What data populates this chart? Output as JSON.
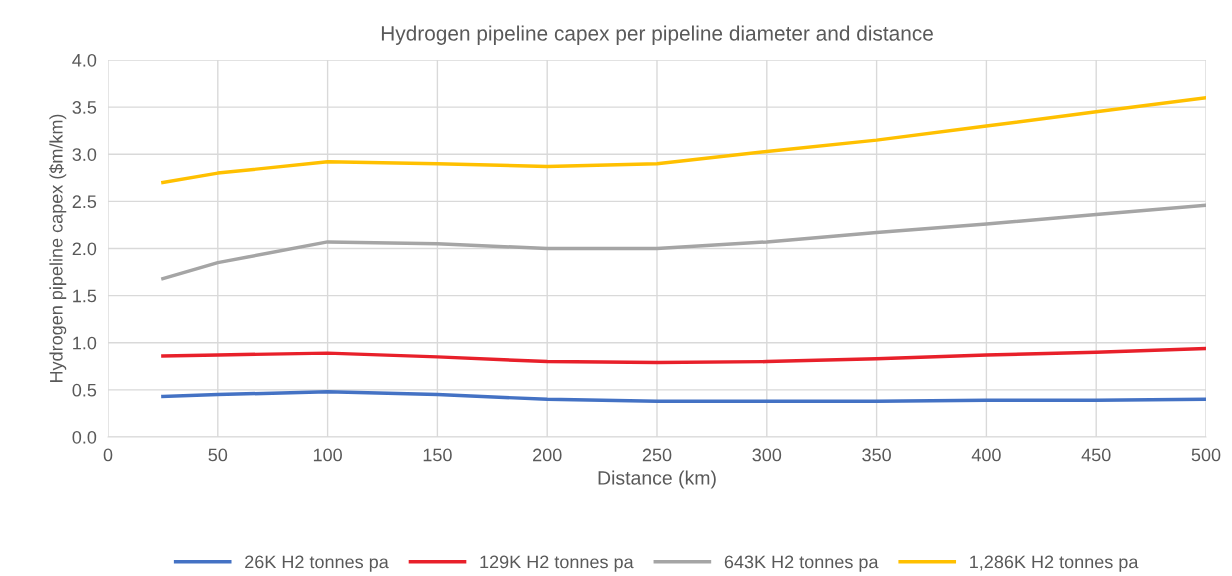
{
  "chart_data": {
    "type": "line",
    "title": "Hydrogen pipeline capex per pipeline diameter and distance",
    "xlabel": "Distance (km)",
    "ylabel": "Hydrogen pipeline capex ($m/km)",
    "x": [
      25,
      50,
      100,
      150,
      200,
      250,
      300,
      350,
      400,
      450,
      500
    ],
    "series": [
      {
        "name": "26K H2 tonnes pa",
        "color": "#4472c4",
        "values": [
          0.43,
          0.45,
          0.48,
          0.45,
          0.4,
          0.38,
          0.38,
          0.38,
          0.39,
          0.39,
          0.4
        ]
      },
      {
        "name": "129K H2 tonnes pa",
        "color": "#e8202a",
        "values": [
          0.86,
          0.87,
          0.89,
          0.85,
          0.8,
          0.79,
          0.8,
          0.83,
          0.87,
          0.9,
          0.94
        ]
      },
      {
        "name": "643K H2 tonnes pa",
        "color": "#a5a5a5",
        "values": [
          1.68,
          1.85,
          2.07,
          2.05,
          2.0,
          2.0,
          2.07,
          2.17,
          2.26,
          2.36,
          2.46
        ]
      },
      {
        "name": "1,286K H2 tonnes pa",
        "color": "#ffc000",
        "values": [
          2.7,
          2.8,
          2.92,
          2.9,
          2.87,
          2.9,
          3.03,
          3.15,
          3.3,
          3.45,
          3.6
        ]
      }
    ],
    "xlim": [
      0,
      500
    ],
    "xticks": [
      0,
      50,
      100,
      150,
      200,
      250,
      300,
      350,
      400,
      450,
      500
    ],
    "ylim": [
      0,
      4
    ],
    "yticks": [
      {
        "value": 0,
        "label": "0.0"
      },
      {
        "value": 0.5,
        "label": "0.5"
      },
      {
        "value": 1,
        "label": "1.0"
      },
      {
        "value": 1.5,
        "label": "1.5"
      },
      {
        "value": 2,
        "label": "2.0"
      },
      {
        "value": 2.5,
        "label": "2.5"
      },
      {
        "value": 3,
        "label": "3.0"
      },
      {
        "value": 3.5,
        "label": "3.5"
      },
      {
        "value": 4,
        "label": "4.0"
      }
    ],
    "grid": true,
    "legend": "bottom",
    "marker": "none",
    "line_style": "solid"
  }
}
